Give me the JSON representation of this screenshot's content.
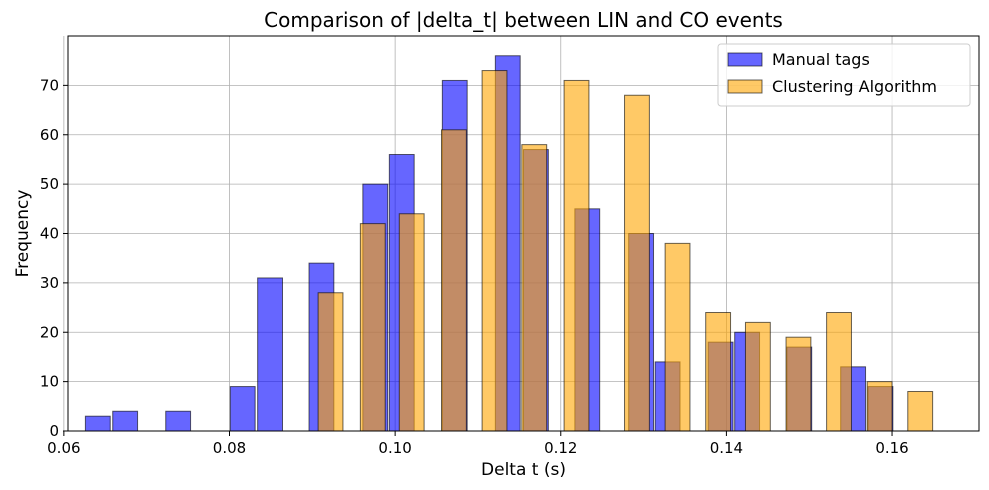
{
  "chart_data": {
    "type": "bar",
    "title": "Comparison of |delta_t| between LIN and CO events",
    "xlabel": "Delta t (s)",
    "ylabel": "Frequency",
    "xlim": [
      0.0605,
      0.1705
    ],
    "ylim": [
      0,
      80
    ],
    "x_ticks": [
      0.06,
      0.08,
      0.1,
      0.12,
      0.14,
      0.16
    ],
    "x_tick_labels": [
      "0.06",
      "0.08",
      "0.10",
      "0.12",
      "0.14",
      "0.16"
    ],
    "y_ticks": [
      0,
      10,
      20,
      30,
      40,
      50,
      60,
      70
    ],
    "y_tick_labels": [
      "0",
      "10",
      "20",
      "30",
      "40",
      "50",
      "60",
      "70"
    ],
    "grid": true,
    "legend_position": "top-right",
    "bar_width": 0.003,
    "series": [
      {
        "name": "Manual tags",
        "color": "#0000ff",
        "bins": [
          {
            "x": 0.0641,
            "value": 3
          },
          {
            "x": 0.0674,
            "value": 4
          },
          {
            "x": 0.0738,
            "value": 4
          },
          {
            "x": 0.0816,
            "value": 9
          },
          {
            "x": 0.0849,
            "value": 31
          },
          {
            "x": 0.0911,
            "value": 34
          },
          {
            "x": 0.0976,
            "value": 50
          },
          {
            "x": 0.1008,
            "value": 56
          },
          {
            "x": 0.1072,
            "value": 71
          },
          {
            "x": 0.1136,
            "value": 76
          },
          {
            "x": 0.117,
            "value": 57
          },
          {
            "x": 0.1232,
            "value": 45
          },
          {
            "x": 0.1297,
            "value": 40
          },
          {
            "x": 0.1329,
            "value": 14
          },
          {
            "x": 0.1393,
            "value": 18
          },
          {
            "x": 0.1425,
            "value": 20
          },
          {
            "x": 0.1488,
            "value": 17
          },
          {
            "x": 0.1553,
            "value": 13
          },
          {
            "x": 0.1586,
            "value": 9
          }
        ]
      },
      {
        "name": "Clustering Algorithm",
        "color": "#ffa500",
        "bins": [
          {
            "x": 0.0922,
            "value": 28
          },
          {
            "x": 0.0973,
            "value": 42
          },
          {
            "x": 0.102,
            "value": 44
          },
          {
            "x": 0.1071,
            "value": 61
          },
          {
            "x": 0.112,
            "value": 73
          },
          {
            "x": 0.1168,
            "value": 58
          },
          {
            "x": 0.1219,
            "value": 71
          },
          {
            "x": 0.1292,
            "value": 68
          },
          {
            "x": 0.1341,
            "value": 38
          },
          {
            "x": 0.139,
            "value": 24
          },
          {
            "x": 0.1438,
            "value": 22
          },
          {
            "x": 0.1487,
            "value": 19
          },
          {
            "x": 0.1536,
            "value": 24
          },
          {
            "x": 0.1585,
            "value": 10
          },
          {
            "x": 0.1634,
            "value": 8
          }
        ]
      }
    ]
  }
}
